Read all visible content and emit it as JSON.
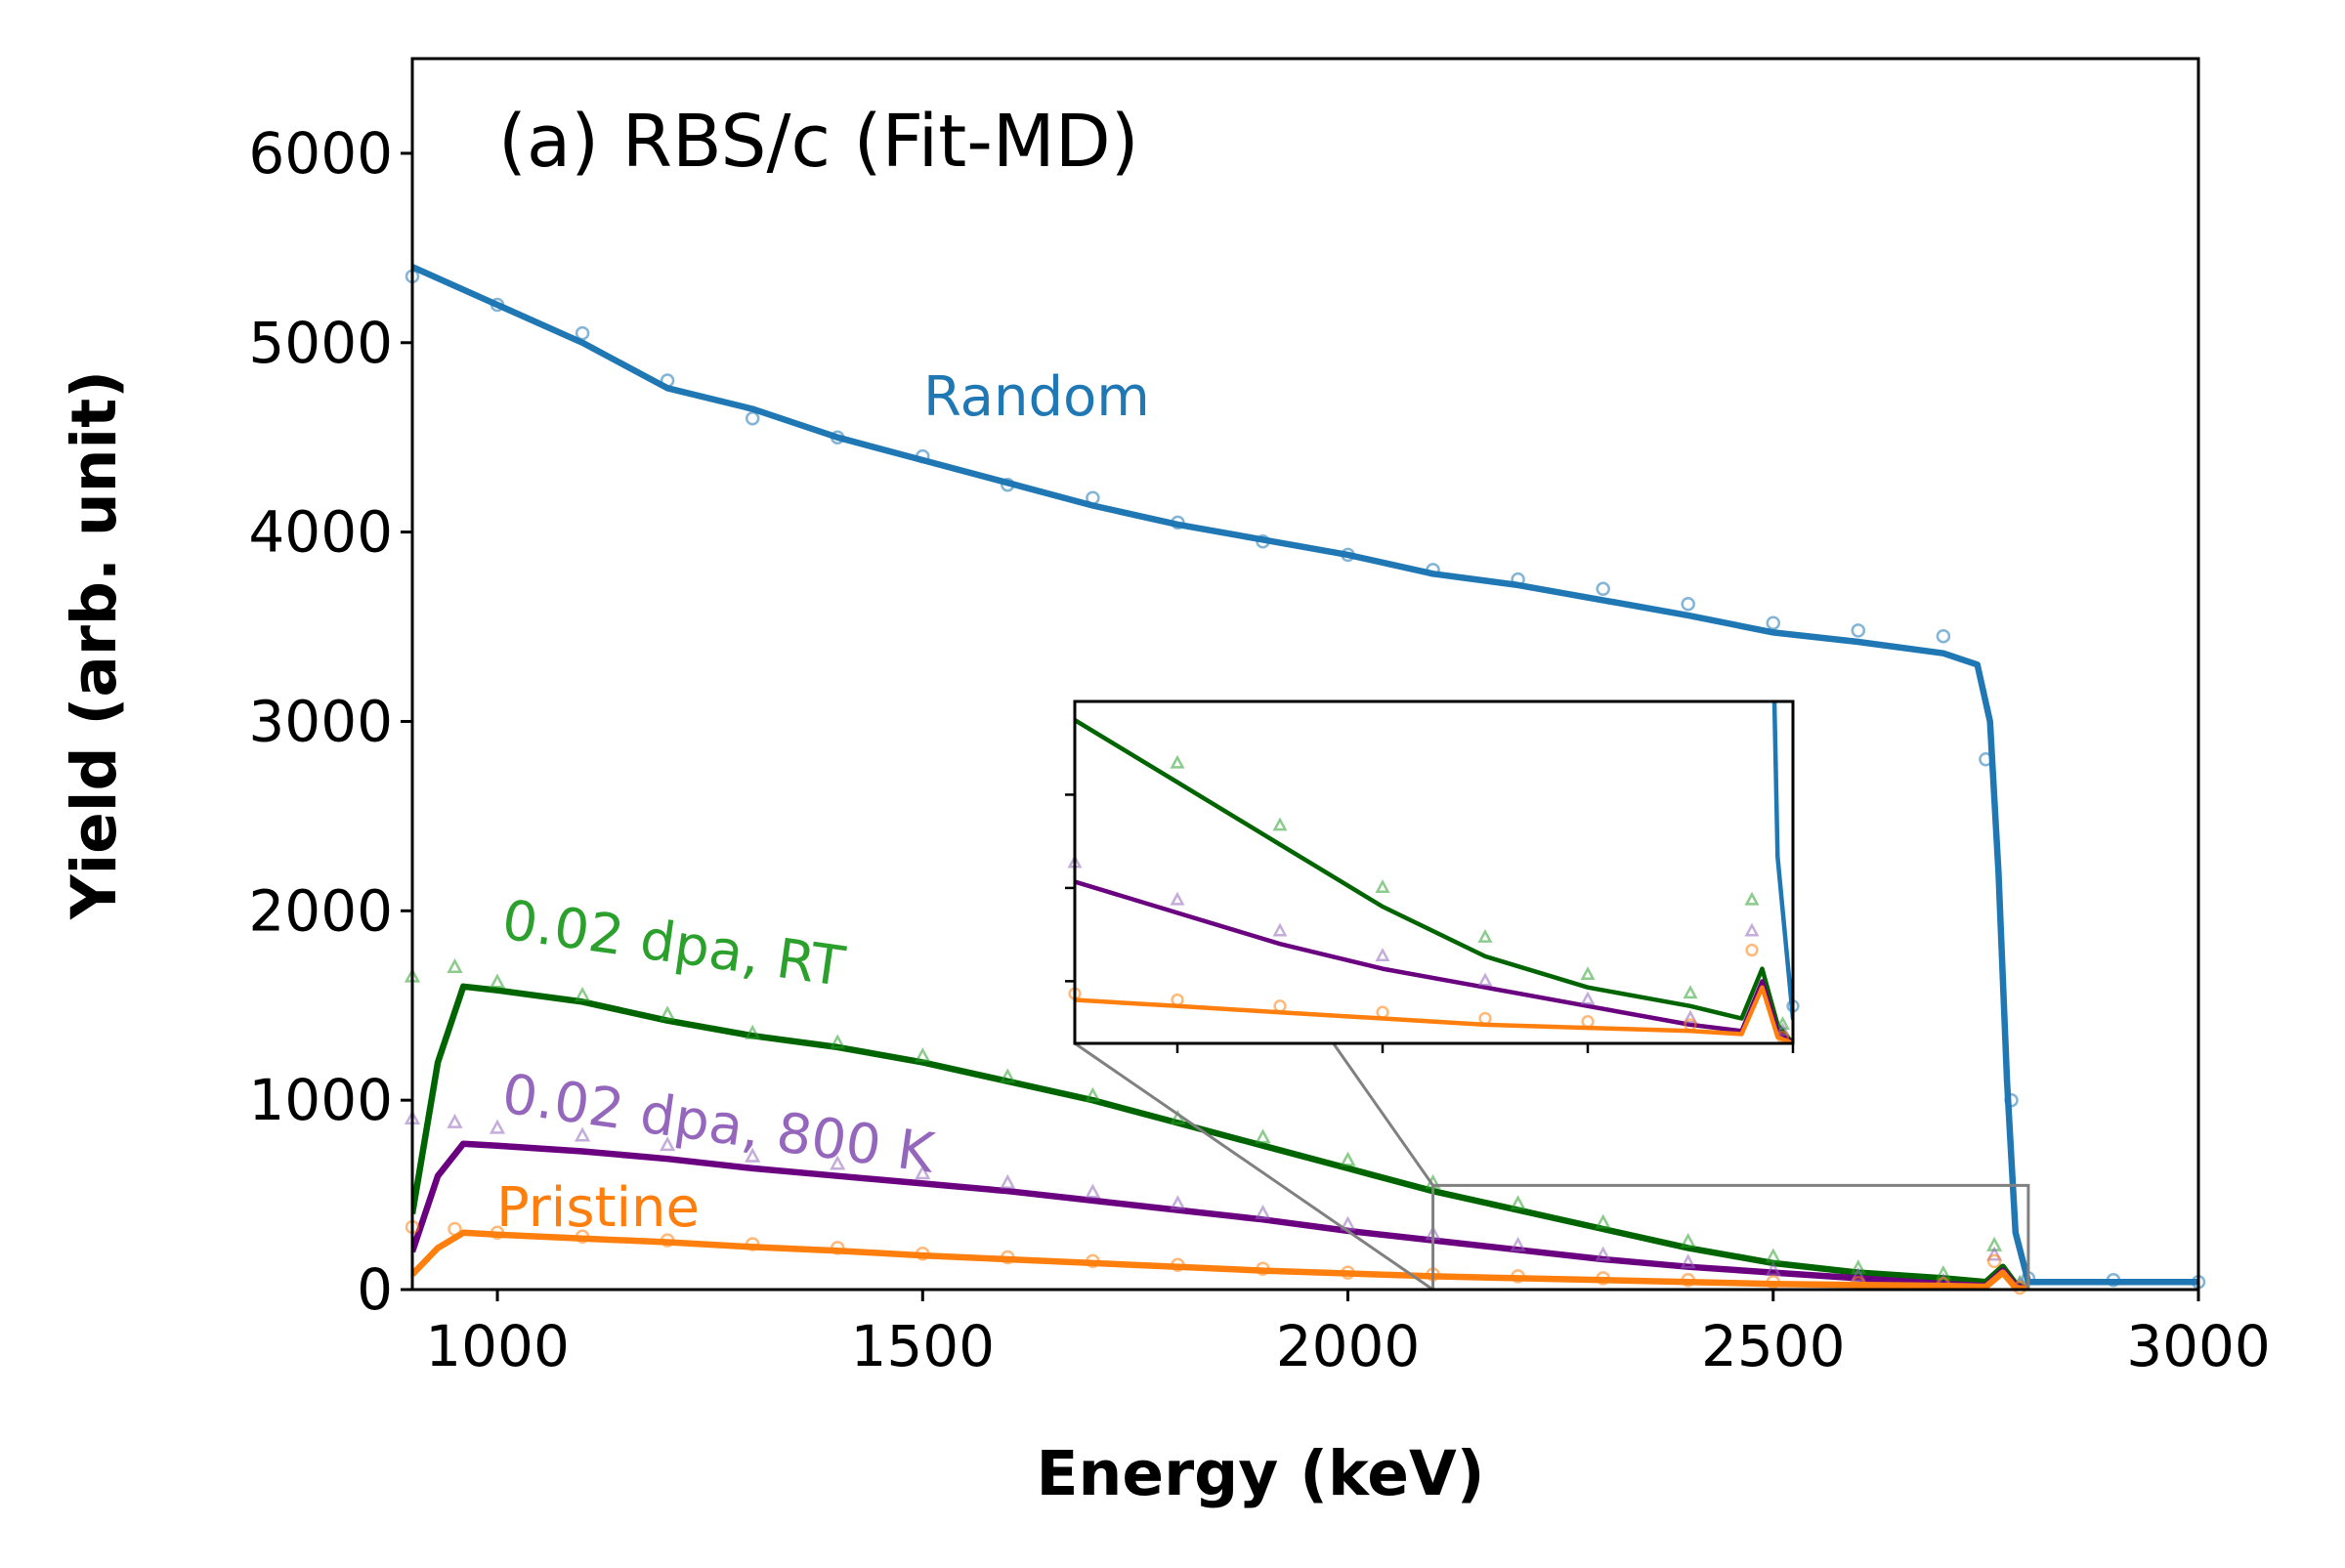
{
  "chart_data": {
    "type": "line",
    "title": "(a) RBS/c (Fit-MD)",
    "xlabel": "Energy (keV)",
    "ylabel": "Yield (arb. unit)",
    "xlim": [
      900,
      3000
    ],
    "ylim": [
      0,
      6500
    ],
    "x_ticks": [
      1000,
      1500,
      2000,
      2500,
      3000
    ],
    "y_ticks": [
      0,
      1000,
      2000,
      3000,
      4000,
      5000,
      6000
    ],
    "x_tick_labels": [
      "1000",
      "1500",
      "2000",
      "2500",
      "3000"
    ],
    "y_tick_labels": [
      "0",
      "1000",
      "2000",
      "3000",
      "4000",
      "5000",
      "6000"
    ],
    "grid": false,
    "series": [
      {
        "name": "Random",
        "color": "#1f77b4",
        "marker": "circle",
        "fit": [
          [
            900,
            5400
          ],
          [
            1000,
            5200
          ],
          [
            1100,
            5000
          ],
          [
            1200,
            4760
          ],
          [
            1300,
            4650
          ],
          [
            1400,
            4500
          ],
          [
            1500,
            4380
          ],
          [
            1600,
            4260
          ],
          [
            1700,
            4140
          ],
          [
            1800,
            4040
          ],
          [
            1900,
            3960
          ],
          [
            2000,
            3880
          ],
          [
            2100,
            3780
          ],
          [
            2200,
            3720
          ],
          [
            2300,
            3640
          ],
          [
            2400,
            3560
          ],
          [
            2500,
            3470
          ],
          [
            2600,
            3420
          ],
          [
            2700,
            3360
          ],
          [
            2740,
            3300
          ],
          [
            2755,
            3000
          ],
          [
            2765,
            2200
          ],
          [
            2775,
            1100
          ],
          [
            2785,
            300
          ],
          [
            2800,
            40
          ],
          [
            3000,
            40
          ]
        ],
        "points": [
          [
            900,
            5350
          ],
          [
            1000,
            5200
          ],
          [
            1100,
            5050
          ],
          [
            1200,
            4800
          ],
          [
            1300,
            4600
          ],
          [
            1400,
            4500
          ],
          [
            1500,
            4400
          ],
          [
            1600,
            4250
          ],
          [
            1700,
            4180
          ],
          [
            1800,
            4050
          ],
          [
            1900,
            3950
          ],
          [
            2000,
            3880
          ],
          [
            2100,
            3800
          ],
          [
            2200,
            3750
          ],
          [
            2300,
            3700
          ],
          [
            2400,
            3620
          ],
          [
            2500,
            3520
          ],
          [
            2600,
            3480
          ],
          [
            2700,
            3450
          ],
          [
            2750,
            2800
          ],
          [
            2780,
            1000
          ],
          [
            2800,
            60
          ],
          [
            2900,
            50
          ],
          [
            3000,
            40
          ]
        ]
      },
      {
        "name": "0.02 dpa, RT",
        "color": "#2ca02c",
        "line_color": "#006400",
        "marker": "triangle",
        "fit": [
          [
            900,
            400
          ],
          [
            930,
            1200
          ],
          [
            960,
            1600
          ],
          [
            1000,
            1580
          ],
          [
            1100,
            1520
          ],
          [
            1200,
            1420
          ],
          [
            1300,
            1340
          ],
          [
            1400,
            1280
          ],
          [
            1500,
            1200
          ],
          [
            1600,
            1100
          ],
          [
            1700,
            1000
          ],
          [
            1800,
            880
          ],
          [
            1900,
            760
          ],
          [
            2000,
            640
          ],
          [
            2100,
            520
          ],
          [
            2200,
            420
          ],
          [
            2300,
            320
          ],
          [
            2400,
            220
          ],
          [
            2500,
            140
          ],
          [
            2600,
            90
          ],
          [
            2700,
            60
          ],
          [
            2750,
            40
          ],
          [
            2770,
            120
          ],
          [
            2785,
            30
          ],
          [
            2800,
            0
          ]
        ],
        "points": [
          [
            900,
            1650
          ],
          [
            950,
            1700
          ],
          [
            1000,
            1620
          ],
          [
            1100,
            1550
          ],
          [
            1200,
            1450
          ],
          [
            1300,
            1350
          ],
          [
            1400,
            1300
          ],
          [
            1500,
            1230
          ],
          [
            1600,
            1120
          ],
          [
            1700,
            1020
          ],
          [
            1800,
            900
          ],
          [
            1900,
            800
          ],
          [
            2000,
            680
          ],
          [
            2100,
            560
          ],
          [
            2200,
            450
          ],
          [
            2300,
            350
          ],
          [
            2400,
            250
          ],
          [
            2500,
            170
          ],
          [
            2600,
            110
          ],
          [
            2700,
            80
          ],
          [
            2760,
            230
          ],
          [
            2790,
            30
          ]
        ]
      },
      {
        "name": "0.02 dpa, 800 K",
        "color": "#9467bd",
        "line_color": "#6a0080",
        "marker": "triangle",
        "fit": [
          [
            900,
            200
          ],
          [
            930,
            600
          ],
          [
            960,
            770
          ],
          [
            1000,
            760
          ],
          [
            1100,
            730
          ],
          [
            1200,
            690
          ],
          [
            1300,
            640
          ],
          [
            1400,
            600
          ],
          [
            1500,
            560
          ],
          [
            1600,
            520
          ],
          [
            1700,
            470
          ],
          [
            1800,
            420
          ],
          [
            1900,
            370
          ],
          [
            2000,
            310
          ],
          [
            2100,
            260
          ],
          [
            2200,
            210
          ],
          [
            2300,
            160
          ],
          [
            2400,
            120
          ],
          [
            2500,
            90
          ],
          [
            2600,
            60
          ],
          [
            2700,
            30
          ],
          [
            2750,
            20
          ],
          [
            2770,
            100
          ],
          [
            2785,
            20
          ],
          [
            2800,
            0
          ]
        ],
        "points": [
          [
            900,
            900
          ],
          [
            950,
            880
          ],
          [
            1000,
            850
          ],
          [
            1100,
            810
          ],
          [
            1200,
            760
          ],
          [
            1300,
            700
          ],
          [
            1400,
            660
          ],
          [
            1500,
            610
          ],
          [
            1600,
            560
          ],
          [
            1700,
            510
          ],
          [
            1800,
            450
          ],
          [
            1900,
            400
          ],
          [
            2000,
            340
          ],
          [
            2100,
            290
          ],
          [
            2200,
            230
          ],
          [
            2300,
            180
          ],
          [
            2400,
            140
          ],
          [
            2500,
            100
          ],
          [
            2600,
            70
          ],
          [
            2700,
            40
          ],
          [
            2760,
            180
          ],
          [
            2790,
            20
          ]
        ]
      },
      {
        "name": "Pristine",
        "color": "#ff7f0e",
        "marker": "circle",
        "fit": [
          [
            900,
            80
          ],
          [
            930,
            220
          ],
          [
            960,
            300
          ],
          [
            1000,
            290
          ],
          [
            1100,
            270
          ],
          [
            1200,
            250
          ],
          [
            1300,
            225
          ],
          [
            1400,
            205
          ],
          [
            1500,
            180
          ],
          [
            1600,
            160
          ],
          [
            1700,
            140
          ],
          [
            1800,
            120
          ],
          [
            1900,
            100
          ],
          [
            2000,
            85
          ],
          [
            2100,
            70
          ],
          [
            2200,
            60
          ],
          [
            2300,
            50
          ],
          [
            2400,
            40
          ],
          [
            2500,
            30
          ],
          [
            2600,
            25
          ],
          [
            2700,
            20
          ],
          [
            2750,
            15
          ],
          [
            2770,
            90
          ],
          [
            2785,
            10
          ],
          [
            2800,
            0
          ]
        ],
        "points": [
          [
            900,
            330
          ],
          [
            950,
            320
          ],
          [
            1000,
            300
          ],
          [
            1100,
            280
          ],
          [
            1200,
            260
          ],
          [
            1300,
            240
          ],
          [
            1400,
            220
          ],
          [
            1500,
            190
          ],
          [
            1600,
            170
          ],
          [
            1700,
            150
          ],
          [
            1800,
            130
          ],
          [
            1900,
            110
          ],
          [
            2000,
            90
          ],
          [
            2100,
            80
          ],
          [
            2200,
            70
          ],
          [
            2300,
            60
          ],
          [
            2400,
            50
          ],
          [
            2500,
            40
          ],
          [
            2600,
            35
          ],
          [
            2700,
            30
          ],
          [
            2760,
            150
          ],
          [
            2790,
            10
          ]
        ]
      }
    ],
    "inset": {
      "xlim": [
        2100,
        2800
      ],
      "ylim": [
        0,
        550
      ],
      "ticks": "unlabeled"
    }
  }
}
